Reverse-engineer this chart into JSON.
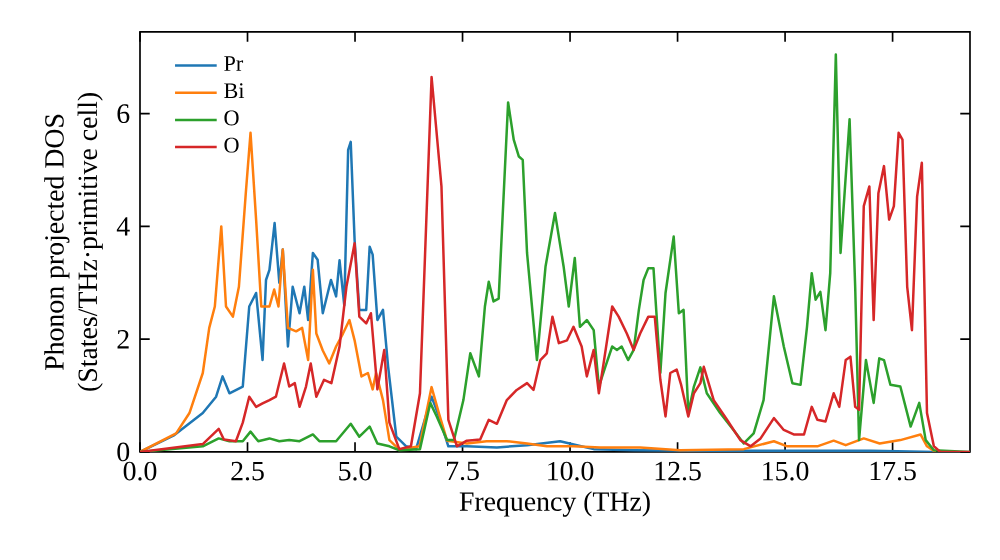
{
  "chart_data": {
    "type": "line",
    "xlabel": "Frequency (THz)",
    "ylabel": "Phonon projected DOS\n(States/THz·primitive cell)",
    "xlim": [
      0,
      19.3
    ],
    "ylim": [
      0,
      7.45
    ],
    "xticks": [
      {
        "value": 0,
        "label": "0.0"
      },
      {
        "value": 2.5,
        "label": "2.5"
      },
      {
        "value": 5,
        "label": "5.0"
      },
      {
        "value": 7.5,
        "label": "7.5"
      },
      {
        "value": 10,
        "label": "10.0"
      },
      {
        "value": 12.5,
        "label": "12.5"
      },
      {
        "value": 15,
        "label": "15.0"
      },
      {
        "value": 17.5,
        "label": "17.5"
      }
    ],
    "yticks": [
      0,
      2,
      4,
      6
    ],
    "legend": "top left",
    "grid": false,
    "marker": "none",
    "line_style": "solid",
    "series": [
      {
        "name": "Pr",
        "color": "#1f77b4",
        "x": [
          0,
          0.8,
          1.46,
          1.77,
          1.92,
          2.08,
          2.39,
          2.54,
          2.7,
          2.85,
          2.93,
          3.01,
          3.13,
          3.24,
          3.32,
          3.44,
          3.55,
          3.71,
          3.82,
          3.91,
          4.02,
          4.13,
          4.25,
          4.44,
          4.56,
          4.64,
          4.75,
          4.84,
          4.9,
          4.99,
          5.1,
          5.26,
          5.34,
          5.41,
          5.52,
          5.65,
          5.77,
          5.96,
          6.19,
          6.42,
          6.78,
          6.95,
          7.17,
          7.6,
          8.3,
          9.0,
          9.77,
          10.16,
          10.55,
          11.48,
          13,
          15,
          17,
          18.5
        ],
        "values": [
          0,
          0.3,
          0.69,
          0.98,
          1.34,
          1.04,
          1.16,
          2.58,
          2.82,
          1.63,
          3.05,
          3.23,
          4.06,
          3.0,
          3.59,
          1.87,
          2.93,
          2.46,
          2.93,
          2.34,
          3.53,
          3.41,
          2.46,
          3.05,
          2.76,
          3.4,
          2.6,
          5.36,
          5.5,
          3.76,
          2.52,
          2.52,
          3.64,
          3.5,
          2.34,
          2.52,
          1.51,
          0.27,
          0.1,
          0.05,
          0.98,
          0.63,
          0.1,
          0.1,
          0.08,
          0.12,
          0.19,
          0.12,
          0.05,
          0.03,
          0.02,
          0.02,
          0.02,
          0.0
        ]
      },
      {
        "name": "Bi",
        "color": "#ff7f0e",
        "x": [
          0,
          0.84,
          1.15,
          1.46,
          1.61,
          1.74,
          1.89,
          2.0,
          2.16,
          2.3,
          2.46,
          2.57,
          2.7,
          2.82,
          3.01,
          3.12,
          3.22,
          3.32,
          3.44,
          3.63,
          3.77,
          3.91,
          4.02,
          4.1,
          4.25,
          4.4,
          4.56,
          4.72,
          4.87,
          4.99,
          5.15,
          5.3,
          5.41,
          5.49,
          5.65,
          5.8,
          6.03,
          6.5,
          6.78,
          6.95,
          7.14,
          7.6,
          8.06,
          8.53,
          9.0,
          9.46,
          10.08,
          10.7,
          11.63,
          12.56,
          14.04,
          14.74,
          15.05,
          15.75,
          16.13,
          16.41,
          16.83,
          17.2,
          17.68,
          18.15,
          18.3,
          18.5
        ],
        "values": [
          0,
          0.33,
          0.69,
          1.4,
          2.2,
          2.58,
          4.0,
          2.58,
          2.4,
          2.93,
          4.59,
          5.66,
          4.12,
          2.58,
          2.58,
          2.88,
          2.58,
          3.59,
          2.2,
          2.14,
          2.2,
          1.63,
          3.23,
          2.1,
          1.8,
          1.57,
          1.87,
          2.1,
          2.34,
          1.98,
          1.34,
          1.4,
          1.11,
          1.4,
          0.92,
          0.21,
          0.04,
          0.1,
          1.15,
          0.69,
          0.2,
          0.15,
          0.19,
          0.19,
          0.15,
          0.1,
          0.1,
          0.08,
          0.08,
          0.03,
          0.05,
          0.19,
          0.1,
          0.1,
          0.2,
          0.12,
          0.24,
          0.15,
          0.21,
          0.31,
          0.1,
          0.0
        ]
      },
      {
        "name": "O",
        "color": "#2ca02c",
        "x": [
          0,
          1.46,
          1.83,
          2.08,
          2.39,
          2.57,
          2.75,
          3.01,
          3.24,
          3.47,
          3.71,
          4.02,
          4.17,
          4.56,
          4.9,
          5.1,
          5.34,
          5.52,
          5.8,
          6.03,
          6.51,
          6.75,
          6.9,
          7.14,
          7.3,
          7.52,
          7.68,
          7.88,
          8.02,
          8.11,
          8.22,
          8.34,
          8.56,
          8.69,
          8.81,
          8.9,
          9.0,
          9.23,
          9.43,
          9.65,
          9.85,
          9.97,
          10.11,
          10.23,
          10.39,
          10.55,
          10.67,
          10.82,
          10.98,
          11.09,
          11.2,
          11.35,
          11.48,
          11.6,
          11.71,
          11.82,
          11.94,
          12.1,
          12.22,
          12.41,
          12.53,
          12.64,
          12.75,
          12.88,
          13.03,
          13.18,
          13.49,
          13.8,
          14.04,
          14.27,
          14.5,
          14.74,
          14.97,
          15.17,
          15.36,
          15.51,
          15.62,
          15.71,
          15.82,
          15.94,
          16.05,
          16.18,
          16.29,
          16.5,
          16.63,
          16.72,
          16.88,
          17.06,
          17.19,
          17.3,
          17.45,
          17.68,
          17.92,
          18.12,
          18.27,
          18.46,
          19.3
        ],
        "values": [
          0,
          0.1,
          0.24,
          0.19,
          0.19,
          0.36,
          0.19,
          0.24,
          0.19,
          0.21,
          0.19,
          0.31,
          0.19,
          0.19,
          0.5,
          0.27,
          0.45,
          0.15,
          0.1,
          0.03,
          0.05,
          0.87,
          0.63,
          0.21,
          0.21,
          0.92,
          1.75,
          1.34,
          2.58,
          3.02,
          2.67,
          2.72,
          6.2,
          5.54,
          5.24,
          5.18,
          3.53,
          1.63,
          3.29,
          4.24,
          3.29,
          2.58,
          3.44,
          2.22,
          2.34,
          2.16,
          1.16,
          1.51,
          1.87,
          1.81,
          1.87,
          1.63,
          1.81,
          2.52,
          3.05,
          3.26,
          3.26,
          1.4,
          2.82,
          3.82,
          2.46,
          2.52,
          0.69,
          1.16,
          1.5,
          1.04,
          0.69,
          0.39,
          0.15,
          0.33,
          0.92,
          2.76,
          1.87,
          1.22,
          1.19,
          2.22,
          3.17,
          2.7,
          2.84,
          2.16,
          3.17,
          7.05,
          3.53,
          5.9,
          2.93,
          0.21,
          1.63,
          0.87,
          1.66,
          1.63,
          1.19,
          1.16,
          0.45,
          0.87,
          0.21,
          0.03,
          0.0
        ]
      },
      {
        "name": "O",
        "color": "#d62728",
        "x": [
          0,
          1.46,
          1.83,
          1.95,
          2.23,
          2.39,
          2.54,
          2.7,
          2.85,
          3.01,
          3.16,
          3.35,
          3.47,
          3.6,
          3.71,
          3.86,
          3.97,
          4.1,
          4.28,
          4.45,
          4.64,
          4.8,
          4.99,
          5.1,
          5.26,
          5.37,
          5.52,
          5.68,
          5.8,
          6.03,
          6.3,
          6.51,
          6.78,
          7.01,
          7.17,
          7.37,
          7.6,
          7.91,
          8.11,
          8.3,
          8.53,
          8.76,
          9.0,
          9.15,
          9.31,
          9.46,
          9.59,
          9.74,
          9.93,
          10.08,
          10.27,
          10.39,
          10.55,
          10.67,
          10.78,
          10.98,
          11.13,
          11.32,
          11.48,
          11.63,
          11.82,
          11.97,
          12.1,
          12.22,
          12.33,
          12.48,
          12.58,
          12.75,
          12.88,
          13.03,
          13.11,
          13.34,
          13.65,
          13.96,
          14.2,
          14.43,
          14.74,
          14.97,
          15.2,
          15.44,
          15.62,
          15.75,
          15.94,
          16.13,
          16.26,
          16.41,
          16.52,
          16.63,
          16.72,
          16.83,
          16.96,
          17.06,
          17.17,
          17.3,
          17.42,
          17.53,
          17.64,
          17.73,
          17.84,
          17.95,
          18.07,
          18.18,
          18.3,
          18.46,
          18.61,
          19.3
        ],
        "values": [
          0,
          0.14,
          0.41,
          0.22,
          0.19,
          0.52,
          0.98,
          0.8,
          0.86,
          0.92,
          0.98,
          1.57,
          1.16,
          1.22,
          0.8,
          1.16,
          1.57,
          0.98,
          1.28,
          1.22,
          1.87,
          2.93,
          3.7,
          2.4,
          2.28,
          2.46,
          1.11,
          1.81,
          0.52,
          0.05,
          0.1,
          1.04,
          6.65,
          4.71,
          0.57,
          0.1,
          0.2,
          0.22,
          0.57,
          0.5,
          0.92,
          1.1,
          1.22,
          1.1,
          1.63,
          1.75,
          2.4,
          1.93,
          1.98,
          2.22,
          1.87,
          1.34,
          1.81,
          1.04,
          1.57,
          2.58,
          2.4,
          2.1,
          1.81,
          2.1,
          2.4,
          2.4,
          1.28,
          0.63,
          1.4,
          1.46,
          1.2,
          0.63,
          1.04,
          1.22,
          1.51,
          0.92,
          0.57,
          0.21,
          0.1,
          0.24,
          0.6,
          0.39,
          0.31,
          0.31,
          0.8,
          0.57,
          0.54,
          1.04,
          0.8,
          1.63,
          1.69,
          0.8,
          0.75,
          4.36,
          4.71,
          2.34,
          4.59,
          5.07,
          4.12,
          4.36,
          5.66,
          5.54,
          2.93,
          2.16,
          4.53,
          5.13,
          0.69,
          0.1,
          0.0,
          0.0
        ]
      }
    ]
  }
}
